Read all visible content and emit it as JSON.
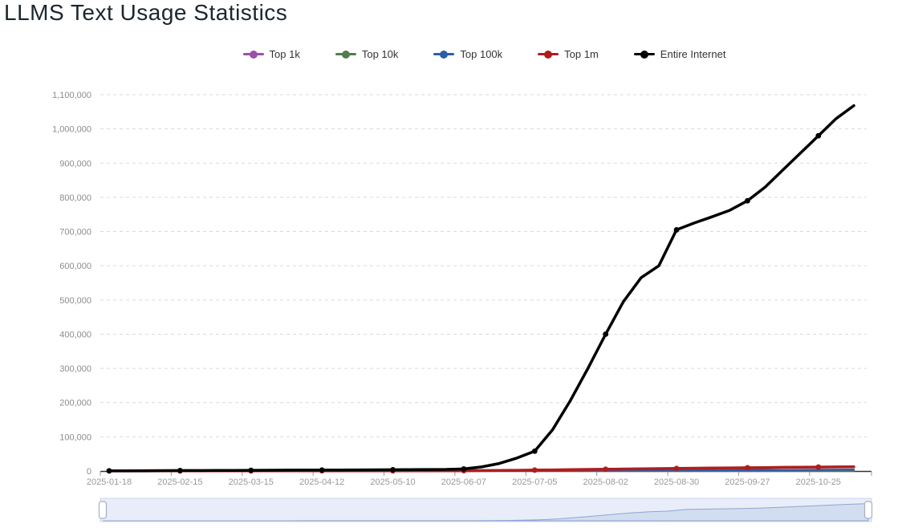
{
  "header": {
    "title": "LLMS Text Usage Statistics"
  },
  "chart_data": {
    "type": "line",
    "title": "LLMS Text Usage Statistics",
    "xlabel": "",
    "ylabel": "",
    "ylim": [
      0,
      1100000
    ],
    "y_ticks": [
      0,
      100000,
      200000,
      300000,
      400000,
      500000,
      600000,
      700000,
      800000,
      900000,
      1000000,
      1100000
    ],
    "y_tick_labels": [
      "0",
      "100,000",
      "200,000",
      "300,000",
      "400,000",
      "500,000",
      "600,000",
      "700,000",
      "800,000",
      "900,000",
      "1,000,000",
      "1,100,000"
    ],
    "x": [
      "2025-01-18",
      "2025-01-25",
      "2025-02-01",
      "2025-02-08",
      "2025-02-15",
      "2025-02-22",
      "2025-03-01",
      "2025-03-08",
      "2025-03-15",
      "2025-03-22",
      "2025-03-29",
      "2025-04-05",
      "2025-04-12",
      "2025-04-19",
      "2025-04-26",
      "2025-05-03",
      "2025-05-10",
      "2025-05-17",
      "2025-05-24",
      "2025-05-31",
      "2025-06-07",
      "2025-06-14",
      "2025-06-21",
      "2025-06-28",
      "2025-07-05",
      "2025-07-12",
      "2025-07-19",
      "2025-07-26",
      "2025-08-02",
      "2025-08-09",
      "2025-08-16",
      "2025-08-23",
      "2025-08-30",
      "2025-09-06",
      "2025-09-13",
      "2025-09-20",
      "2025-09-27",
      "2025-10-04",
      "2025-10-11",
      "2025-10-18",
      "2025-10-25",
      "2025-11-01",
      "2025-11-08"
    ],
    "x_tick_labels": [
      "2025-01-18",
      "2025-02-15",
      "2025-03-15",
      "2025-04-12",
      "2025-05-10",
      "2025-06-07",
      "2025-07-05",
      "2025-08-02",
      "2025-08-30",
      "2025-09-27",
      "2025-10-25"
    ],
    "x_tick_every": 4,
    "grid": "dashed-horizontal",
    "legend_position": "top",
    "navigator": true,
    "series": [
      {
        "name": "Top 1k",
        "color": "#9b4fa8",
        "line_width": 2,
        "values": [
          10,
          11,
          12,
          13,
          14,
          15,
          16,
          17,
          18,
          19,
          20,
          21,
          22,
          23,
          24,
          25,
          26,
          28,
          30,
          32,
          35,
          38,
          42,
          46,
          50,
          55,
          60,
          66,
          72,
          78,
          85,
          92,
          100,
          108,
          116,
          124,
          132,
          140,
          148,
          156,
          164,
          172,
          180
        ]
      },
      {
        "name": "Top 10k",
        "color": "#527d4f",
        "line_width": 2,
        "values": [
          50,
          55,
          60,
          65,
          70,
          75,
          80,
          85,
          90,
          95,
          100,
          105,
          110,
          115,
          120,
          125,
          130,
          140,
          150,
          160,
          175,
          190,
          210,
          230,
          260,
          290,
          330,
          370,
          410,
          450,
          490,
          530,
          570,
          610,
          650,
          690,
          720,
          750,
          780,
          810,
          840,
          870,
          900
        ]
      },
      {
        "name": "Top 100k",
        "color": "#2b5fa5",
        "line_width": 2.5,
        "values": [
          100,
          110,
          120,
          130,
          140,
          150,
          160,
          170,
          180,
          190,
          200,
          210,
          220,
          230,
          240,
          250,
          260,
          280,
          300,
          320,
          350,
          400,
          450,
          520,
          600,
          700,
          820,
          950,
          1100,
          1300,
          1500,
          1700,
          1900,
          2100,
          2300,
          2500,
          2700,
          2900,
          3100,
          3300,
          3500,
          3700,
          3900
        ]
      },
      {
        "name": "Top 1m",
        "color": "#b01d1d",
        "line_width": 3.5,
        "values": [
          300,
          320,
          340,
          360,
          380,
          400,
          420,
          440,
          460,
          480,
          500,
          520,
          540,
          560,
          580,
          600,
          650,
          700,
          800,
          900,
          1000,
          1300,
          1700,
          2200,
          2800,
          3400,
          4000,
          4600,
          5200,
          5800,
          6400,
          7000,
          7600,
          8200,
          8700,
          9200,
          9700,
          10200,
          10700,
          11200,
          11600,
          12000,
          12400
        ]
      },
      {
        "name": "Entire Internet",
        "color": "#000000",
        "line_width": 3.5,
        "values": [
          500,
          700,
          900,
          1100,
          1300,
          1500,
          1700,
          1900,
          2100,
          2300,
          2500,
          2700,
          2900,
          3100,
          3300,
          3500,
          3800,
          4100,
          4400,
          4800,
          6000,
          12000,
          22000,
          38000,
          58000,
          120000,
          205000,
          300000,
          400000,
          495000,
          565000,
          600000,
          705000,
          725000,
          743000,
          762000,
          790000,
          830000,
          880000,
          930000,
          980000,
          1030000,
          1068000
        ]
      }
    ],
    "colors": {
      "grid_line": "#d9d9d9",
      "axis_line": "#333333",
      "axis_tick": "#999999",
      "axis_label": "#999999",
      "y_label": "#8c8c8c",
      "title": "#1b262e",
      "navigator_track_fill": "#e8edf9",
      "navigator_border": "#ccd6ee",
      "navigator_area_fill": "#bfd0ea",
      "navigator_area_line": "#8fa6d2",
      "navigator_handle_fill": "#ffffff",
      "navigator_handle_border": "#a6aec2"
    }
  }
}
